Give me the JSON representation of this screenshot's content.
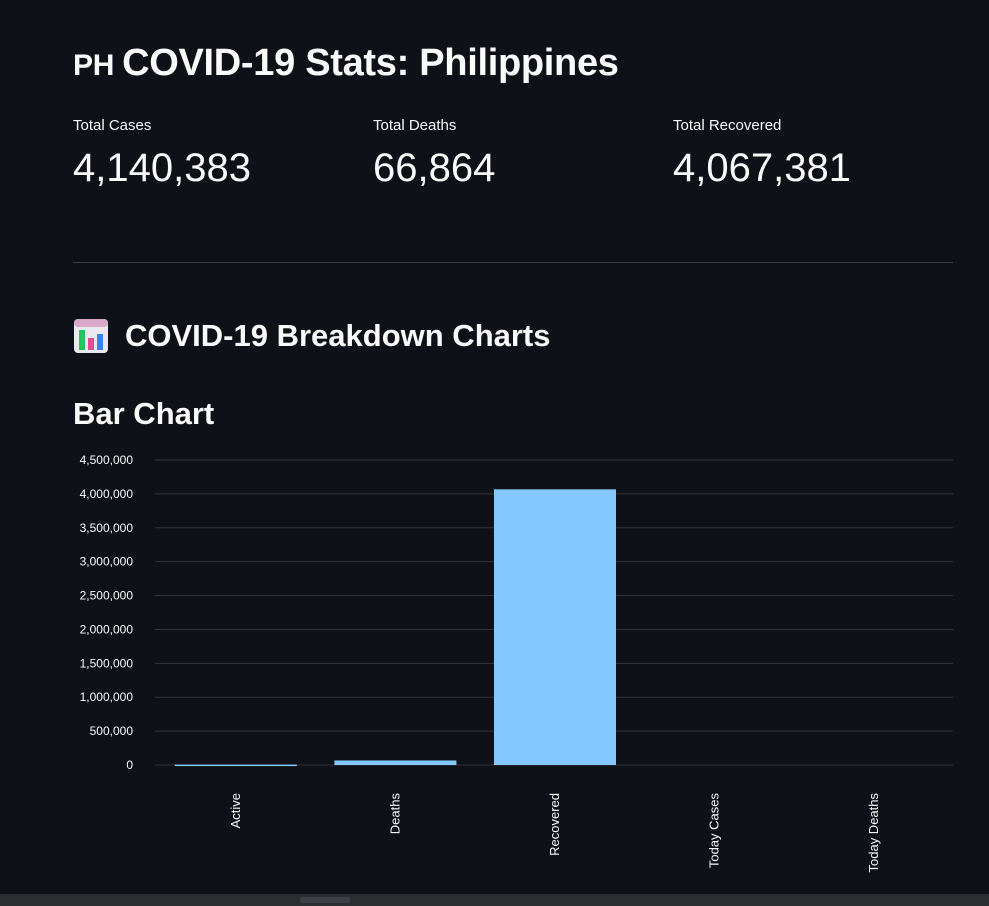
{
  "page": {
    "title_flag": "PH",
    "title_text": "COVID-19 Stats: Philippines"
  },
  "metrics": [
    {
      "label": "Total Cases",
      "value": "4,140,383"
    },
    {
      "label": "Total Deaths",
      "value": "66,864"
    },
    {
      "label": "Total Recovered",
      "value": "4,067,381"
    }
  ],
  "sections": {
    "breakdown_title": "COVID-19 Breakdown Charts",
    "breakdown_icon": "bar-chart-emoji-icon",
    "bar_chart_title": "Bar Chart"
  },
  "colors": {
    "background": "#0e1117",
    "bar": "#83c9ff",
    "text": "#fafafa",
    "grid": "#31333f"
  },
  "chart_data": {
    "type": "bar",
    "categories": [
      "Active",
      "Deaths",
      "Recovered",
      "Today Cases",
      "Today Deaths"
    ],
    "values": [
      6138,
      66864,
      4067381,
      0,
      0
    ],
    "ylim": [
      0,
      4500000
    ],
    "yticks": [
      0,
      500000,
      1000000,
      1500000,
      2000000,
      2500000,
      3000000,
      3500000,
      4000000,
      4500000
    ],
    "ytick_labels": [
      "0",
      "500,000",
      "1,000,000",
      "1,500,000",
      "2,000,000",
      "2,500,000",
      "3,000,000",
      "3,500,000",
      "4,000,000",
      "4,500,000"
    ],
    "grid": true,
    "xlabel": "",
    "ylabel": ""
  }
}
